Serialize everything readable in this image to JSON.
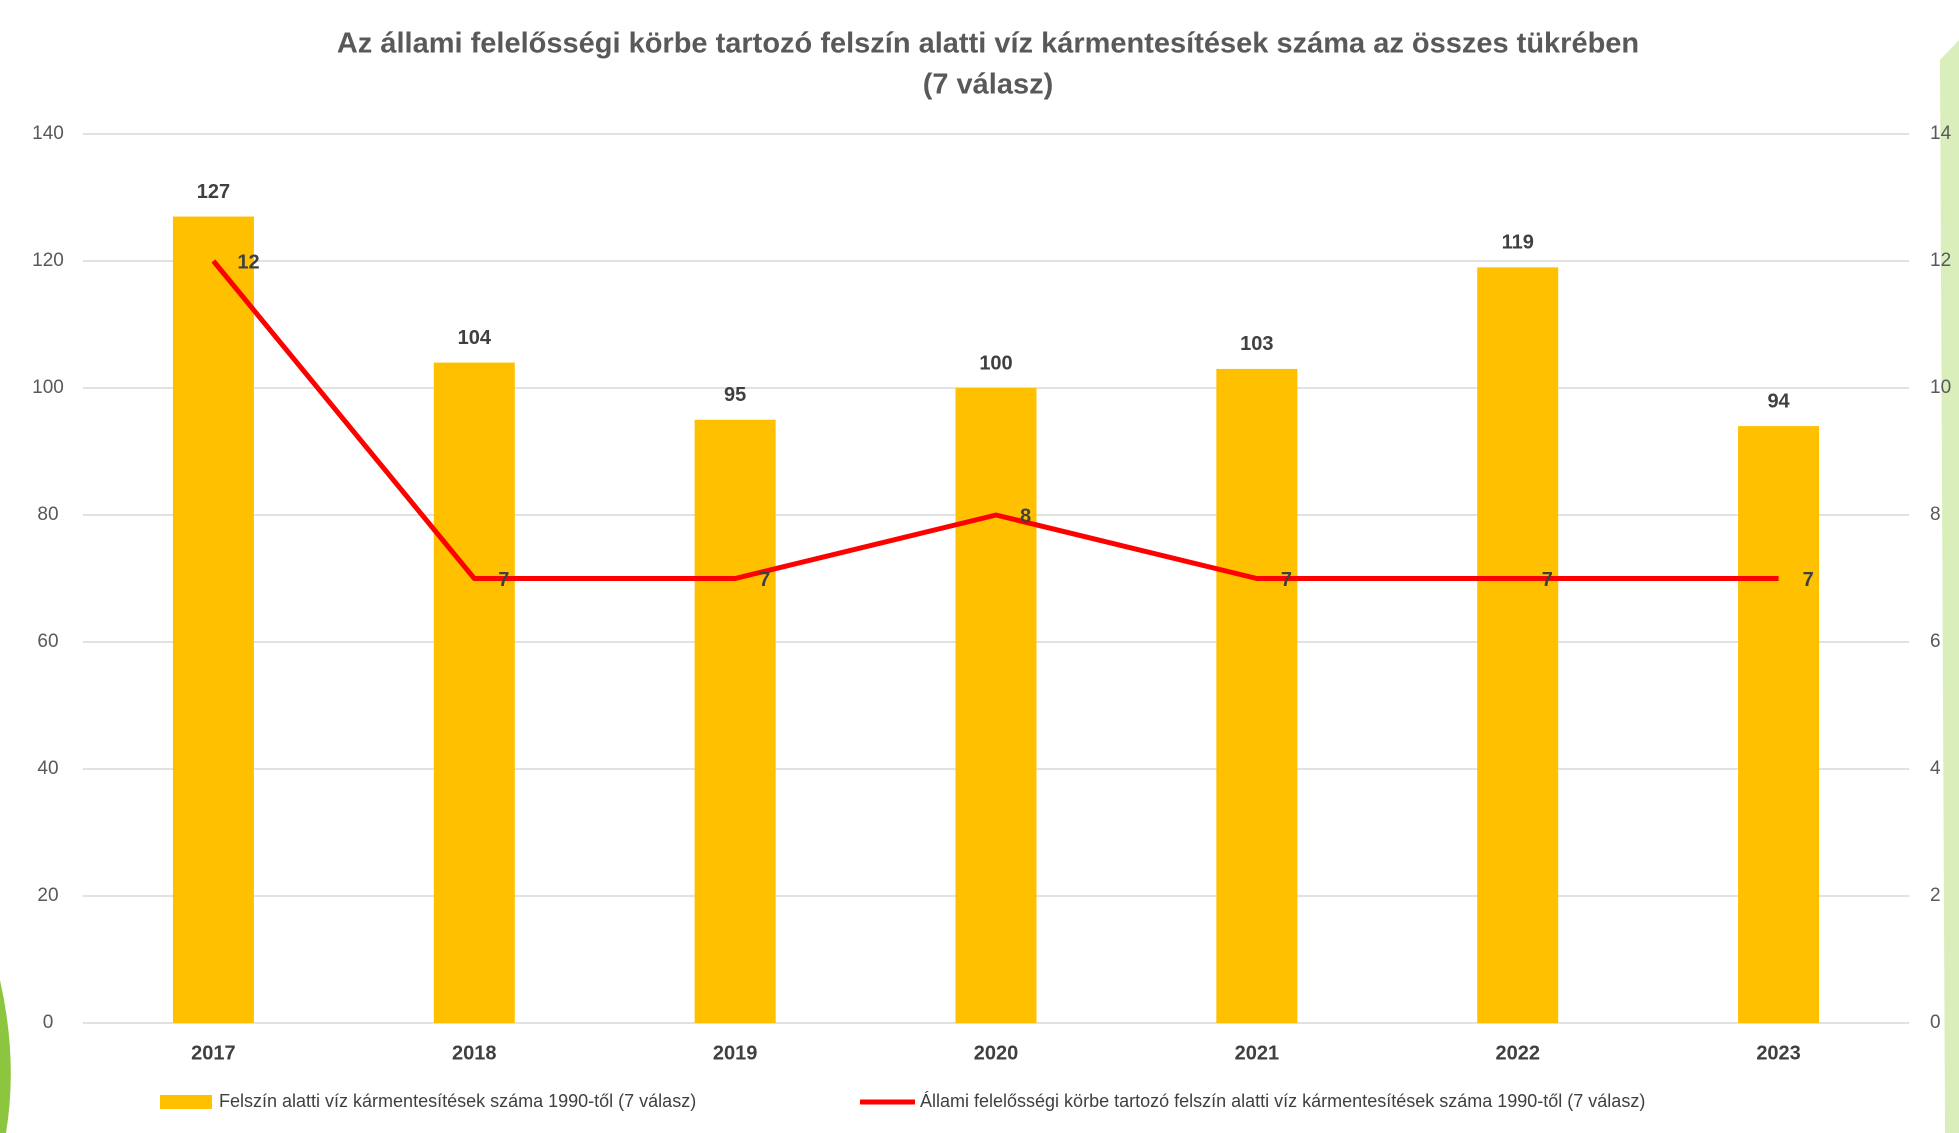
{
  "chart_data": {
    "type": "bar-line",
    "title": "Az állami felelősségi körbe tartozó felszín alatti víz kármentesítések száma az összes tükrében",
    "subtitle": "(7 válasz)",
    "categories": [
      "2017",
      "2018",
      "2019",
      "2020",
      "2021",
      "2022",
      "2023"
    ],
    "series": [
      {
        "name": "Felszín alatti víz kármentesítések száma 1990-től (7 válasz)",
        "type": "bar",
        "color": "#ffc000",
        "values": [
          127,
          104,
          95,
          100,
          103,
          119,
          94
        ]
      },
      {
        "name": "Állami felelősségi körbe tartozó felszín alatti víz kármentesítések száma 1990-től (7 válasz)",
        "type": "line",
        "axis": "y2",
        "color": "#ff0000",
        "values": [
          12,
          7,
          7,
          8,
          7,
          7,
          7
        ]
      }
    ],
    "ylim": [
      0,
      140
    ],
    "yticks": [
      0,
      20,
      40,
      60,
      80,
      100,
      120,
      140
    ],
    "y2lim": [
      0,
      14
    ],
    "y2ticks": [
      0,
      2,
      4,
      6,
      8,
      10,
      12,
      14
    ],
    "grid": true,
    "legend": "bottom"
  }
}
